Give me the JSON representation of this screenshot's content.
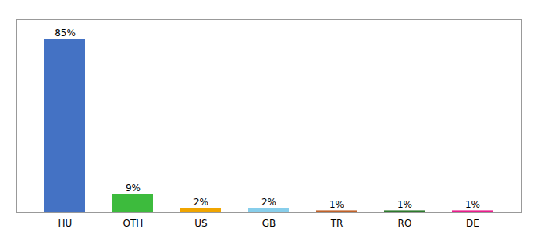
{
  "chart_data": {
    "type": "bar",
    "categories": [
      "HU",
      "OTH",
      "US",
      "GB",
      "TR",
      "RO",
      "DE"
    ],
    "values": [
      85,
      9,
      2,
      2,
      1,
      1,
      1
    ],
    "value_labels": [
      "85%",
      "9%",
      "2%",
      "2%",
      "1%",
      "1%",
      "1%"
    ],
    "colors": [
      "#4472c4",
      "#3dbb3d",
      "#f0a500",
      "#87ceeb",
      "#c0622a",
      "#2d7a2d",
      "#e91e8c"
    ],
    "ylim": [
      0,
      95
    ],
    "grid": false,
    "data_labels": true,
    "tick_labels": "x"
  }
}
